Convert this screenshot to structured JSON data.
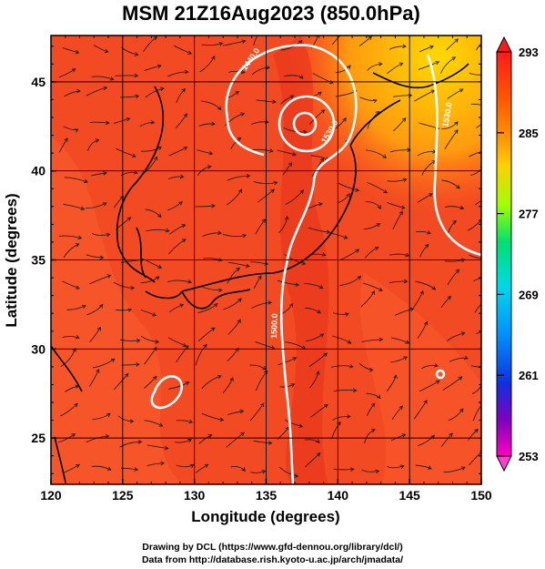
{
  "title": "MSM 21Z16Aug2023 (850.0hPa)",
  "map": {
    "x_axis": {
      "label": "Longitude (degrees)",
      "range": [
        120,
        150
      ],
      "ticks": [
        120,
        125,
        130,
        135,
        140,
        145,
        150
      ],
      "tick_labels": [
        "120",
        "125",
        "130",
        "135",
        "140",
        "145",
        "150"
      ]
    },
    "y_axis": {
      "label": "Latitude  (degrees)",
      "range": [
        22.4,
        47.6
      ],
      "ticks": [
        25,
        30,
        35,
        40,
        45
      ],
      "tick_labels": [
        "25",
        "30",
        "35",
        "40",
        "45"
      ]
    },
    "field": "temperature shading with streamlines and contours",
    "contour_labels": [
      "1440.0",
      "1530.0",
      "1500.0",
      "1530.0"
    ]
  },
  "colorbar": {
    "labels": [
      "293",
      "285",
      "277",
      "269",
      "261",
      "253"
    ],
    "colors": [
      "#ff1a1a",
      "#ff7a00",
      "#ffd000",
      "#a0ff00",
      "#00e070",
      "#00d8e8",
      "#0090ff",
      "#1030e0",
      "#8000c0",
      "#ff00c0"
    ]
  },
  "credits": {
    "line1": "Drawing by DCL (https://www.gfd-dennou.org/library/dcl/)",
    "line2": "Data from http://database.rish.kyoto-u.ac.jp/arch/jmadata/"
  }
}
